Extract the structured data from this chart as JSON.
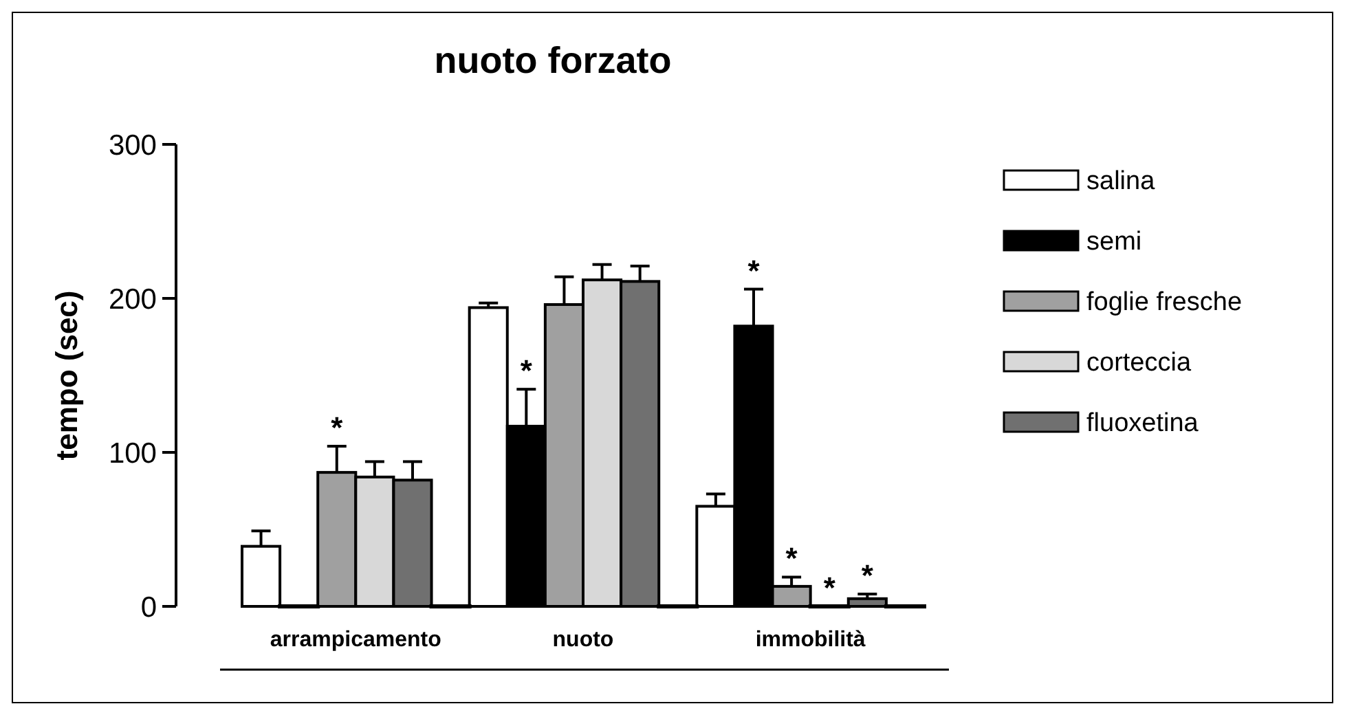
{
  "chart_data": {
    "type": "bar",
    "title": "nuoto forzato",
    "ylabel": "tempo (sec)",
    "categories": [
      "arrampicamento",
      "nuoto",
      "immobilità"
    ],
    "ylim": [
      0,
      300
    ],
    "yticks": [
      0,
      100,
      200,
      300
    ],
    "grid": false,
    "legend": "right",
    "series": [
      {
        "name": "salina",
        "color": "#ffffff",
        "values": [
          39,
          194,
          65
        ],
        "errors": [
          10,
          3,
          8
        ]
      },
      {
        "name": "semi",
        "color": "#000000",
        "values": [
          0,
          117,
          182
        ],
        "errors": [
          null,
          24,
          24
        ],
        "value_labels": [
          null,
          "*",
          "*"
        ]
      },
      {
        "name": "foglie fresche",
        "color": "#a0a0a0",
        "values": [
          87,
          196,
          13
        ],
        "errors": [
          17,
          18,
          6
        ],
        "value_labels": [
          "*",
          null,
          "*"
        ]
      },
      {
        "name": "corteccia",
        "color": "#d8d8d8",
        "values": [
          84,
          212,
          0
        ],
        "errors": [
          10,
          10,
          null
        ],
        "value_labels": [
          null,
          null,
          "*"
        ]
      },
      {
        "name": "fluoxetina",
        "color": "#707070",
        "values": [
          82,
          211,
          5
        ],
        "errors": [
          12,
          10,
          3
        ],
        "value_labels": [
          null,
          null,
          "*"
        ]
      },
      {
        "color": "#000000",
        "values": [
          0,
          0,
          0
        ]
      }
    ]
  }
}
